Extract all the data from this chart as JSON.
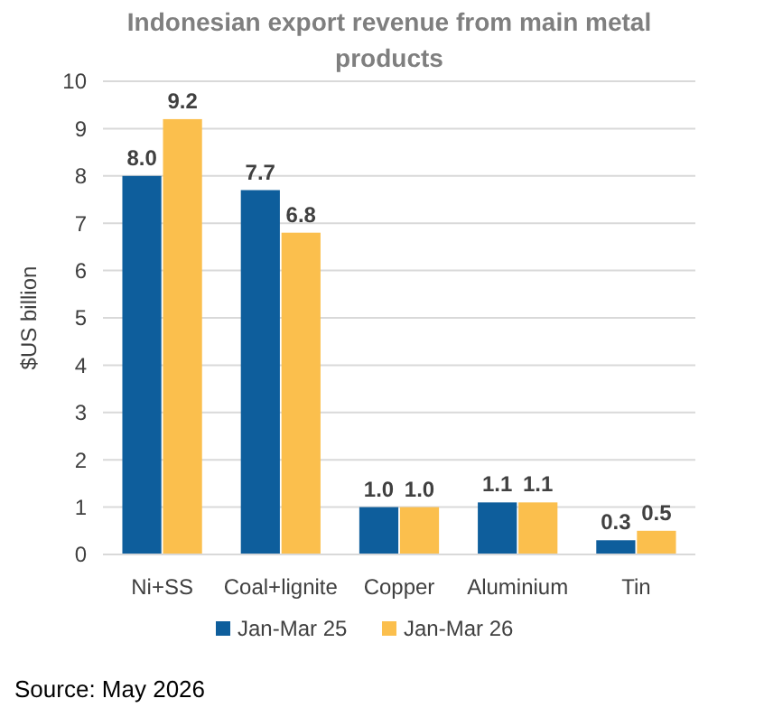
{
  "chart_data": {
    "type": "bar",
    "title": "Indonesian export revenue from main metal products",
    "ylabel": "$US billion",
    "categories": [
      "Ni+SS",
      "Coal+lignite",
      "Copper",
      "Aluminium",
      "Tin"
    ],
    "series": [
      {
        "name": "Jan-Mar 25",
        "color": "#0e5e9c",
        "values": [
          8.0,
          7.7,
          1.0,
          1.1,
          0.3
        ],
        "value_labels": [
          "8.0",
          "7.7",
          "1.0",
          "1.1",
          "0.3"
        ]
      },
      {
        "name": "Jan-Mar 26",
        "color": "#fbbf4d",
        "values": [
          9.2,
          6.8,
          1.0,
          1.1,
          0.5
        ],
        "value_labels": [
          "9.2",
          "6.8",
          "1.0",
          "1.1",
          "0.5"
        ]
      }
    ],
    "ylim": [
      0,
      10
    ],
    "yticks": [
      0,
      1,
      2,
      3,
      4,
      5,
      6,
      7,
      8,
      9,
      10
    ],
    "grid": "y",
    "legend": "bottom",
    "annotations": [
      "Source: May 2026"
    ]
  }
}
